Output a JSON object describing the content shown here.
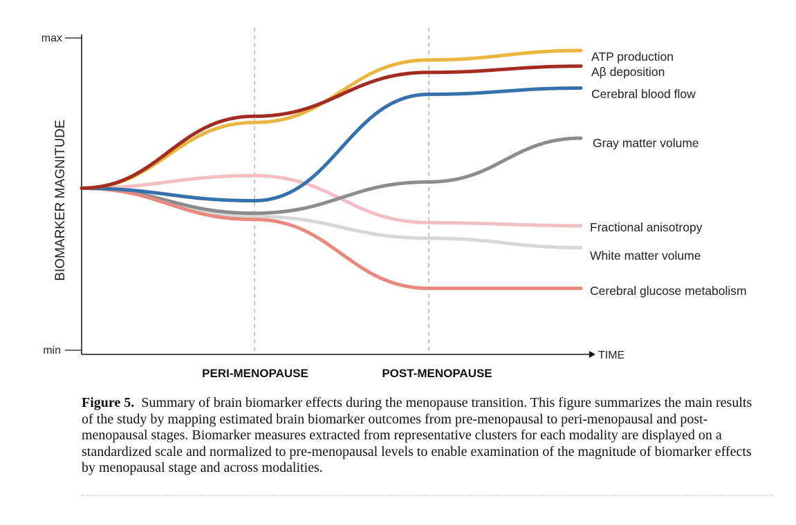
{
  "chart_data": {
    "type": "line",
    "ylabel": "BIOMARKER MAGNITUDE",
    "xlabel": "TIME",
    "y_ticks": [
      "max",
      "min"
    ],
    "x_stages": [
      "PERI-MENOPAUSE",
      "POST-MENOPAUSE"
    ],
    "x_points": [
      0,
      1,
      2,
      3
    ],
    "ylim": [
      0,
      1
    ],
    "grid": false,
    "legend_placement": "labels at right end of each line",
    "series": [
      {
        "name": "ATP production",
        "color": "#eab63f",
        "values": [
          0.52,
          0.73,
          0.93,
          0.96
        ]
      },
      {
        "name": "Aβ deposition",
        "color": "#a32b22",
        "values": [
          0.52,
          0.75,
          0.89,
          0.91
        ]
      },
      {
        "name": "Cerebral blood flow",
        "color": "#3471ad",
        "values": [
          0.52,
          0.48,
          0.82,
          0.84
        ]
      },
      {
        "name": "Gray matter volume",
        "color": "#8c8c8c",
        "values": [
          0.52,
          0.44,
          0.54,
          0.68
        ]
      },
      {
        "name": "Fractional anisotropy",
        "color": "#f3bfc3",
        "values": [
          0.52,
          0.56,
          0.41,
          0.4
        ]
      },
      {
        "name": "White matter volume",
        "color": "#d7d7d7",
        "values": [
          0.52,
          0.43,
          0.36,
          0.33
        ]
      },
      {
        "name": "Cerebral glucose metabolism",
        "color": "#e9897d",
        "values": [
          0.52,
          0.42,
          0.2,
          0.2
        ]
      }
    ]
  },
  "caption": {
    "figure_label": "Figure 5.",
    "text": "Summary of brain biomarker effects during the menopause transition. This figure summarizes the main results of the study by mapping estimated brain biomarker outcomes from pre-menopausal to peri-menopausal and post-menopausal stages. Biomarker measures extracted from representative clusters for each modality are displayed on a standardized scale and normalized to pre-menopausal levels to enable examination of the magnitude of biomarker effects by menopausal stage and across modalities."
  }
}
